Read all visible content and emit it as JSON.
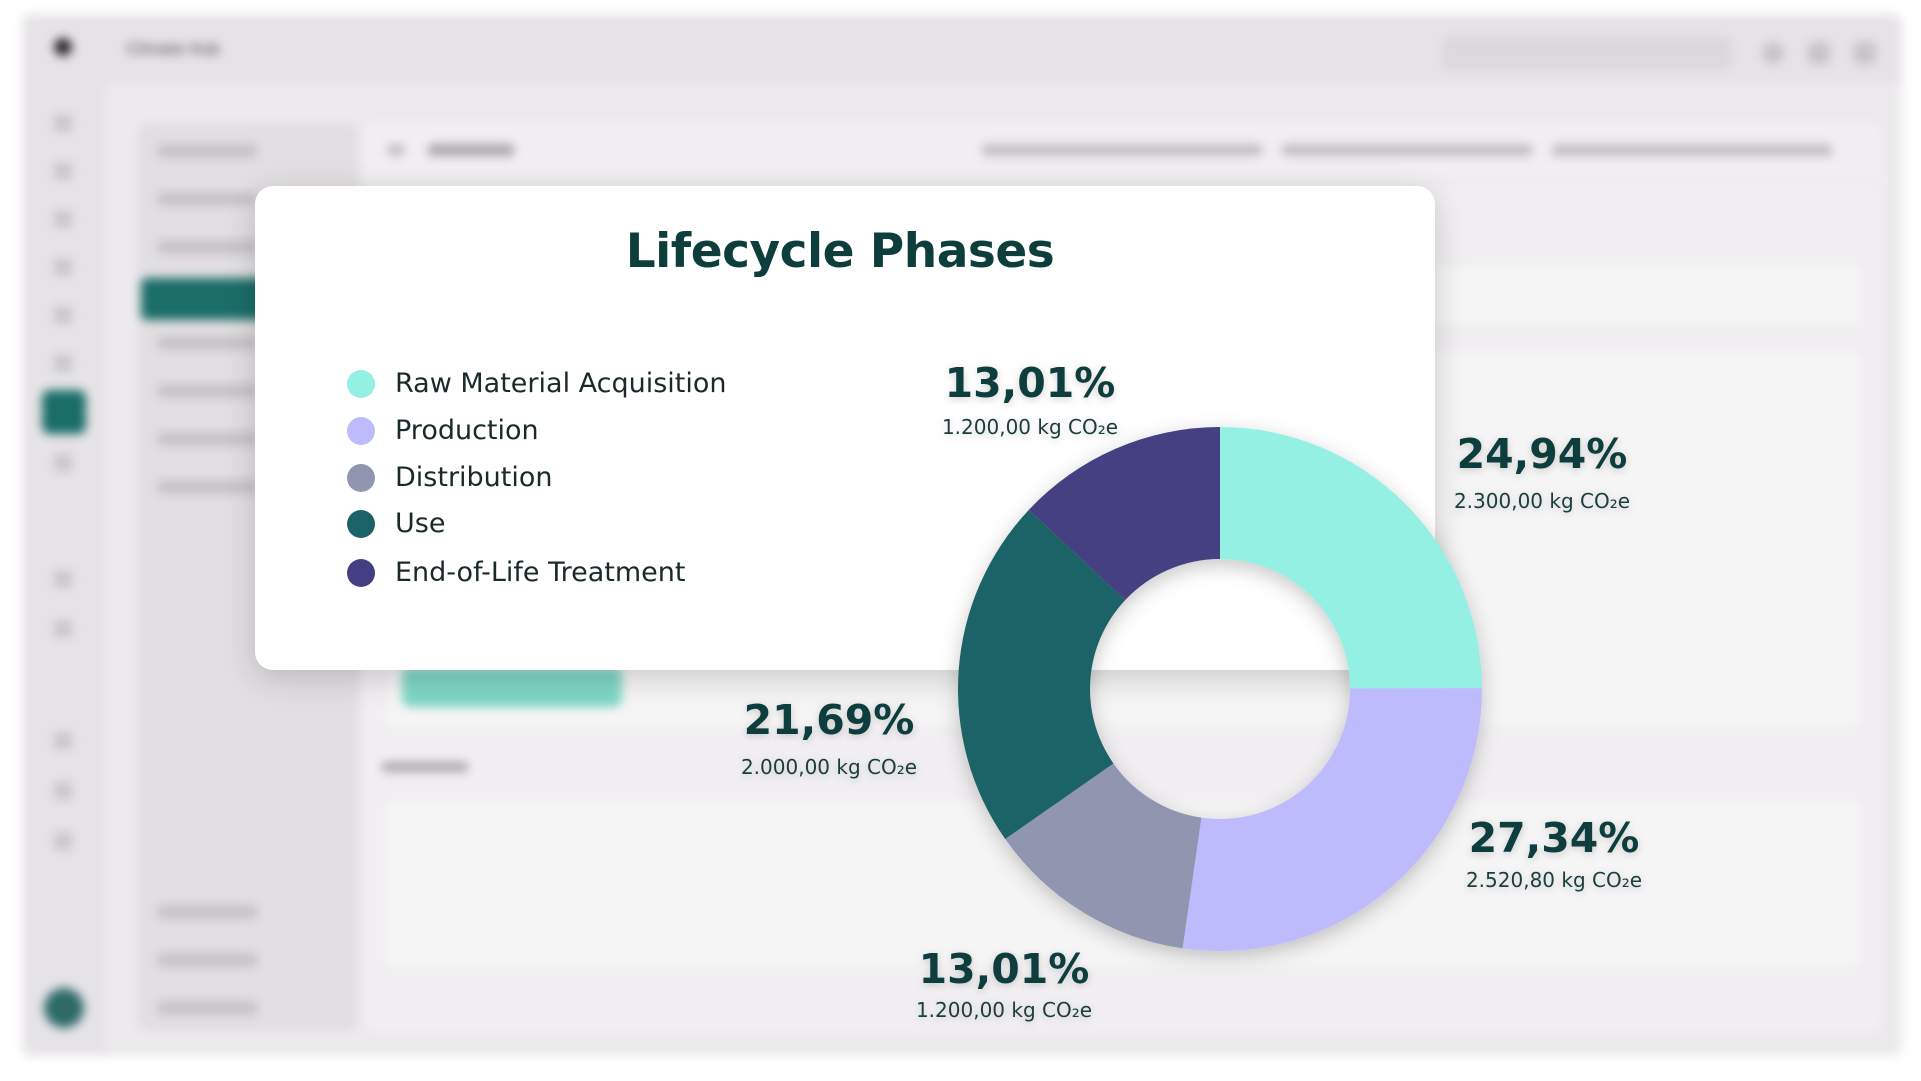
{
  "background_app": {
    "title": "Climate Hub"
  },
  "colors": {
    "title": "#0d3e3c",
    "label_pct": "#0d3e3c",
    "label_abs": "#1c3e3e",
    "raw_material_acquisition": "#93f0e2",
    "production": "#bdbbfb",
    "distribution": "#9096b0",
    "use": "#1b6368",
    "end_of_life_treatment": "#443f82"
  },
  "chart_data": {
    "type": "pie",
    "variant": "donut",
    "title": "Lifecycle Phases",
    "legend_position": "left",
    "unit": "kg CO₂e",
    "slices": [
      {
        "label": "Raw Material Acquisition",
        "value": 2300.0,
        "percent_label": "24,94%",
        "value_label": "2.300,00 kg CO₂e",
        "color": "#93f0e2"
      },
      {
        "label": "Production",
        "value": 2520.8,
        "percent_label": "27,34%",
        "value_label": "2.520,80 kg CO₂e",
        "color": "#bdbbfb"
      },
      {
        "label": "Distribution",
        "value": 1200.0,
        "percent_label": "13,01%",
        "value_label": "1.200,00 kg CO₂e",
        "color": "#9096b0"
      },
      {
        "label": "Use",
        "value": 2000.0,
        "percent_label": "21,69%",
        "value_label": "2.000,00 kg CO₂e",
        "color": "#1b6368"
      },
      {
        "label": "End-of-Life Treatment",
        "value": 1200.0,
        "percent_label": "13,01%",
        "value_label": "1.200,00 kg CO₂e",
        "color": "#443f82"
      }
    ]
  }
}
